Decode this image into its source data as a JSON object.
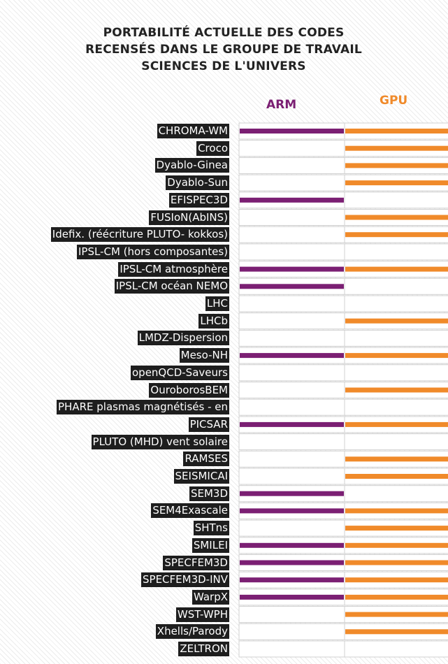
{
  "title_lines": [
    "PORTABILITÉ ACTUELLE DES CODES",
    "RECENSÉS DANS LE GROUPE DE TRAVAIL",
    "SCIENCES DE L'UNIVERS"
  ],
  "colors": {
    "arm": "#7b1f73",
    "gpu": "#f08a2a",
    "label_bg": "#1e1e1e"
  },
  "chart_data": {
    "type": "table",
    "columns": [
      "ARM",
      "GPU"
    ],
    "rows": [
      {
        "name": "CHROMA-WM",
        "arm": true,
        "gpu": true
      },
      {
        "name": "Croco",
        "arm": false,
        "gpu": true
      },
      {
        "name": "Dyablo-Ginea",
        "arm": false,
        "gpu": true
      },
      {
        "name": "Dyablo-Sun",
        "arm": false,
        "gpu": true
      },
      {
        "name": "EFISPEC3D",
        "arm": true,
        "gpu": false
      },
      {
        "name": "FUSIoN(AbINS)",
        "arm": false,
        "gpu": true
      },
      {
        "name": "Idefix. (réécriture PLUTO- kokkos)",
        "arm": false,
        "gpu": true
      },
      {
        "name": "IPSL-CM (hors composantes)",
        "arm": false,
        "gpu": false
      },
      {
        "name": "IPSL-CM atmosphère",
        "arm": true,
        "gpu": true
      },
      {
        "name": "IPSL-CM océan NEMO",
        "arm": true,
        "gpu": false
      },
      {
        "name": "LHC",
        "arm": false,
        "gpu": false
      },
      {
        "name": "LHCb",
        "arm": false,
        "gpu": true
      },
      {
        "name": "LMDZ-Dispersion",
        "arm": false,
        "gpu": false
      },
      {
        "name": "Meso-NH",
        "arm": true,
        "gpu": true
      },
      {
        "name": "openQCD-Saveurs",
        "arm": false,
        "gpu": false
      },
      {
        "name": "OuroborosBEM",
        "arm": false,
        "gpu": true
      },
      {
        "name": "PHARE plasmas magnétisés - en",
        "arm": false,
        "gpu": false
      },
      {
        "name": "PICSAR",
        "arm": true,
        "gpu": true
      },
      {
        "name": "PLUTO (MHD) vent solaire",
        "arm": false,
        "gpu": false
      },
      {
        "name": "RAMSES",
        "arm": false,
        "gpu": true
      },
      {
        "name": "SEISMICAI",
        "arm": false,
        "gpu": true
      },
      {
        "name": "SEM3D",
        "arm": true,
        "gpu": false
      },
      {
        "name": "SEM4Exascale",
        "arm": true,
        "gpu": true
      },
      {
        "name": "SHTns",
        "arm": false,
        "gpu": true
      },
      {
        "name": "SMILEI",
        "arm": true,
        "gpu": true
      },
      {
        "name": "SPECFEM3D",
        "arm": true,
        "gpu": true
      },
      {
        "name": "SPECFEM3D-INV",
        "arm": true,
        "gpu": true
      },
      {
        "name": "WarpX",
        "arm": true,
        "gpu": true
      },
      {
        "name": "WST-WPH",
        "arm": false,
        "gpu": true
      },
      {
        "name": "Xhells/Parody",
        "arm": false,
        "gpu": true
      },
      {
        "name": "ZELTRON",
        "arm": false,
        "gpu": false
      }
    ]
  }
}
